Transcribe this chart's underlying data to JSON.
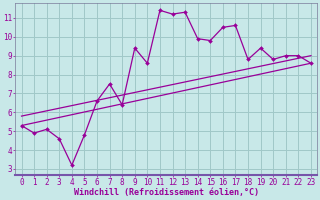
{
  "xlabel": "Windchill (Refroidissement éolien,°C)",
  "bg_color": "#c8e8e8",
  "line_color": "#990099",
  "grid_color": "#a0c8c8",
  "spine_color": "#7a7a9a",
  "x_data": [
    0,
    1,
    2,
    3,
    4,
    5,
    6,
    7,
    8,
    9,
    10,
    11,
    12,
    13,
    14,
    15,
    16,
    17,
    18,
    19,
    20,
    21,
    22,
    23
  ],
  "y_main": [
    5.3,
    4.9,
    5.1,
    4.6,
    3.2,
    4.8,
    6.6,
    7.5,
    6.4,
    9.4,
    8.6,
    11.4,
    11.2,
    11.3,
    9.9,
    9.8,
    10.5,
    10.6,
    8.8,
    9.4,
    8.8,
    9.0,
    9.0,
    8.6
  ],
  "line1_x": [
    0,
    23
  ],
  "line1_y": [
    5.3,
    8.6
  ],
  "line2_x": [
    0,
    23
  ],
  "line2_y": [
    5.8,
    9.0
  ],
  "ylim": [
    2.7,
    11.8
  ],
  "xlim": [
    -0.5,
    23.5
  ],
  "yticks": [
    3,
    4,
    5,
    6,
    7,
    8,
    9,
    10,
    11
  ],
  "xticks": [
    0,
    1,
    2,
    3,
    4,
    5,
    6,
    7,
    8,
    9,
    10,
    11,
    12,
    13,
    14,
    15,
    16,
    17,
    18,
    19,
    20,
    21,
    22,
    23
  ],
  "tick_fontsize": 5.5,
  "xlabel_fontsize": 6.0
}
